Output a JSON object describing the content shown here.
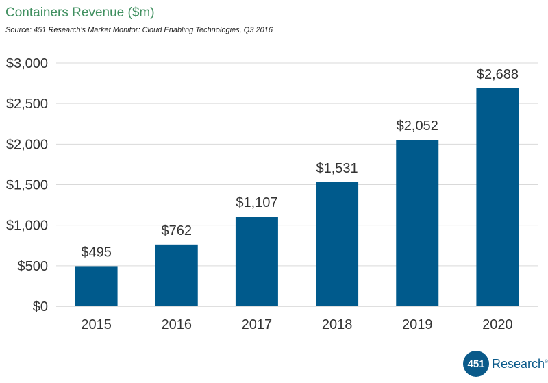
{
  "header": {
    "title": "Containers Revenue ($m)",
    "subtitle": "Source: 451 Research's Market Monitor: Cloud Enabling Technologies, Q3 2016"
  },
  "logo": {
    "mark": "451",
    "word": "Research",
    "reg": "®"
  },
  "colors": {
    "bar": "#005a8c",
    "grid": "#d9d9d9",
    "title": "#3f8f5f",
    "text": "#333333"
  },
  "chart_data": {
    "type": "bar",
    "title": "Containers Revenue ($m)",
    "xlabel": "",
    "ylabel": "",
    "categories": [
      "2015",
      "2016",
      "2017",
      "2018",
      "2019",
      "2020"
    ],
    "values": [
      495,
      762,
      1107,
      1531,
      2052,
      2688
    ],
    "data_labels": [
      "$495",
      "$762",
      "$1,107",
      "$1,531",
      "$2,052",
      "$2,688"
    ],
    "ylim": [
      0,
      3000
    ],
    "yticks": [
      0,
      500,
      1000,
      1500,
      2000,
      2500,
      3000
    ],
    "ytick_labels": [
      "$0",
      "$500",
      "$1,000",
      "$1,500",
      "$2,000",
      "$2,500",
      "$3,000"
    ],
    "grid": true,
    "legend": "none"
  }
}
